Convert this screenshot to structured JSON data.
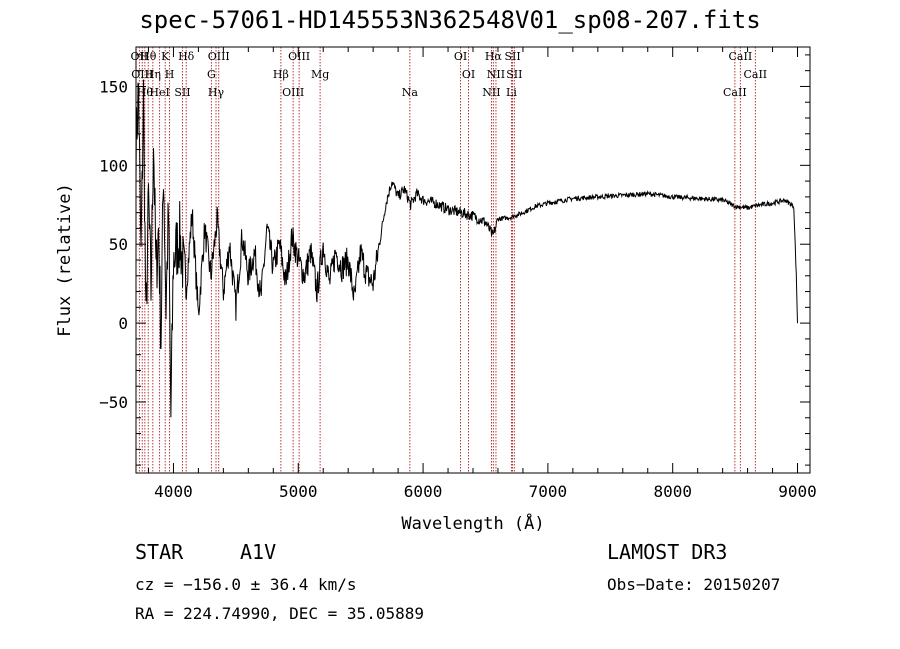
{
  "chart_data": {
    "type": "line",
    "title": "spec-57061-HD145553N362548V01_sp08-207.fits",
    "xlabel": "Wavelength (Å)",
    "ylabel": "Flux (relative)",
    "xlim": [
      3700,
      9100
    ],
    "ylim": [
      -95,
      175
    ],
    "x_ticks": [
      4000,
      5000,
      6000,
      7000,
      8000,
      9000
    ],
    "x_tick_labels": [
      "4000",
      "5000",
      "6000",
      "7000",
      "8000",
      "9000"
    ],
    "y_ticks": [
      -50,
      0,
      50,
      100,
      150
    ],
    "y_tick_labels": [
      "−50",
      "0",
      "50",
      "100",
      "150"
    ],
    "grid": false,
    "series": [
      {
        "name": "flux",
        "x": [
          3700,
          3720,
          3740,
          3760,
          3780,
          3800,
          3820,
          3840,
          3860,
          3880,
          3900,
          3920,
          3940,
          3960,
          3980,
          4000,
          4050,
          4100,
          4150,
          4200,
          4250,
          4300,
          4350,
          4400,
          4450,
          4500,
          4550,
          4600,
          4650,
          4700,
          4750,
          4800,
          4850,
          4900,
          4950,
          5000,
          5050,
          5100,
          5150,
          5200,
          5250,
          5300,
          5350,
          5400,
          5450,
          5500,
          5550,
          5600,
          5650,
          5700,
          5750,
          5800,
          5850,
          5900,
          5950,
          6000,
          6100,
          6200,
          6300,
          6400,
          6500,
          6560,
          6600,
          6700,
          6800,
          6900,
          7000,
          7200,
          7400,
          7600,
          7800,
          8000,
          8200,
          8400,
          8500,
          8600,
          8700,
          8800,
          8900,
          8970,
          8990,
          9000
        ],
        "y": [
          110,
          150,
          40,
          145,
          -5,
          80,
          20,
          120,
          30,
          60,
          -10,
          100,
          10,
          70,
          -60,
          40,
          55,
          20,
          70,
          5,
          60,
          30,
          65,
          20,
          50,
          10,
          55,
          30,
          45,
          15,
          60,
          35,
          50,
          25,
          55,
          40,
          30,
          45,
          20,
          50,
          25,
          45,
          35,
          40,
          15,
          45,
          30,
          25,
          50,
          75,
          90,
          80,
          85,
          75,
          82,
          78,
          76,
          72,
          70,
          68,
          64,
          55,
          66,
          67,
          70,
          74,
          76,
          79,
          80,
          81,
          82,
          80,
          79,
          78,
          74,
          73,
          75,
          76,
          78,
          74,
          30,
          0
        ]
      }
    ],
    "line_markers": [
      {
        "wavelength": 3727,
        "label": "OII"
      },
      {
        "wavelength": 3750,
        "label": "OIII"
      },
      {
        "wavelength": 3771,
        "label": "Hθ"
      },
      {
        "wavelength": 3798,
        "label": "Hθ"
      },
      {
        "wavelength": 3835,
        "label": "Hη"
      },
      {
        "wavelength": 3889,
        "label": "HeI"
      },
      {
        "wavelength": 3934,
        "label": "K"
      },
      {
        "wavelength": 3969,
        "label": "H"
      },
      {
        "wavelength": 4072,
        "label": "SII"
      },
      {
        "wavelength": 4102,
        "label": "Hδ"
      },
      {
        "wavelength": 4304,
        "label": "G"
      },
      {
        "wavelength": 4341,
        "label": "Hγ"
      },
      {
        "wavelength": 4363,
        "label": "OIII"
      },
      {
        "wavelength": 4861,
        "label": "Hβ"
      },
      {
        "wavelength": 4959,
        "label": "OIII"
      },
      {
        "wavelength": 5007,
        "label": "OIII"
      },
      {
        "wavelength": 5175,
        "label": "Mg"
      },
      {
        "wavelength": 5894,
        "label": "Na"
      },
      {
        "wavelength": 6300,
        "label": "OI"
      },
      {
        "wavelength": 6364,
        "label": "OI"
      },
      {
        "wavelength": 6548,
        "label": "NII"
      },
      {
        "wavelength": 6563,
        "label": "Hα"
      },
      {
        "wavelength": 6584,
        "label": "NII"
      },
      {
        "wavelength": 6708,
        "label": "Li"
      },
      {
        "wavelength": 6717,
        "label": "SII"
      },
      {
        "wavelength": 6731,
        "label": "SII"
      },
      {
        "wavelength": 8498,
        "label": "CaII"
      },
      {
        "wavelength": 8542,
        "label": "CaII"
      },
      {
        "wavelength": 8662,
        "label": "CaII"
      }
    ]
  },
  "info": {
    "object_class": "STAR",
    "subclass": "A1V",
    "survey": "LAMOST DR3",
    "redshift": "cz = −156.0 ± 36.4 km/s",
    "obs_date": "Obs−Date: 20150207",
    "coords": "RA = 224.74990, DEC =  35.05889"
  },
  "colors": {
    "line_marker": "#b22222",
    "spectrum": "#000000",
    "axes": "#000000",
    "background": "#ffffff"
  }
}
